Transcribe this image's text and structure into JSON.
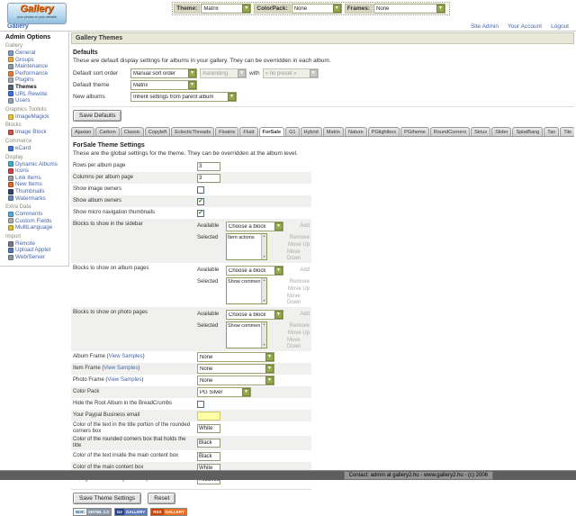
{
  "topbar": {
    "logo": {
      "title": "Gallery",
      "tagline": "your photos on your website"
    },
    "selectors": [
      {
        "label": "Theme:",
        "value": "Matrix"
      },
      {
        "label": "ColorPack:",
        "value": "None"
      },
      {
        "label": "Frames:",
        "value": "None"
      }
    ]
  },
  "nav": {
    "breadcrumb": "Gallery",
    "links": [
      "Site Admin",
      "Your Account",
      "Logout"
    ]
  },
  "sidebar": {
    "title": "Admin Options",
    "sections": [
      {
        "label": "Gallery",
        "items": [
          {
            "icon": "general-icon",
            "label": "General"
          },
          {
            "icon": "groups-icon",
            "label": "Groups"
          },
          {
            "icon": "maintenance-icon",
            "label": "Maintenance"
          },
          {
            "icon": "performance-icon",
            "label": "Performance"
          },
          {
            "icon": "plugins-icon",
            "label": "Plugins"
          },
          {
            "icon": "themes-icon",
            "label": "Themes",
            "active": true
          },
          {
            "icon": "url-rewrite-icon",
            "label": "URL Rewrite"
          },
          {
            "icon": "users-icon",
            "label": "Users"
          }
        ]
      },
      {
        "label": "Graphics Toolkits",
        "items": [
          {
            "icon": "imagemagick-icon",
            "label": "ImageMagick"
          }
        ]
      },
      {
        "label": "Blocks",
        "items": [
          {
            "icon": "image-block-icon",
            "label": "Image Block"
          }
        ]
      },
      {
        "label": "Commerce",
        "items": [
          {
            "icon": "ecard-icon",
            "label": "eCard"
          }
        ]
      },
      {
        "label": "Display",
        "items": [
          {
            "icon": "dynamic-albums-icon",
            "label": "Dynamic Albums"
          },
          {
            "icon": "icons-icon",
            "label": "Icons"
          },
          {
            "icon": "link-items-icon",
            "label": "Link Items"
          },
          {
            "icon": "new-items-icon",
            "label": "New Items"
          },
          {
            "icon": "thumbnails-icon",
            "label": "Thumbnails"
          },
          {
            "icon": "watermarks-icon",
            "label": "Watermarks"
          }
        ]
      },
      {
        "label": "Extra Data",
        "items": [
          {
            "icon": "comments-icon",
            "label": "Comments"
          },
          {
            "icon": "custom-fields-icon",
            "label": "Custom Fields"
          },
          {
            "icon": "multilanguage-icon",
            "label": "MultiLanguage"
          }
        ]
      },
      {
        "label": "Import",
        "items": [
          {
            "icon": "remote-icon",
            "label": "Remote"
          },
          {
            "icon": "upload-applet-icon",
            "label": "Upload Applet"
          },
          {
            "icon": "web-server-icon",
            "label": "Web/Server"
          }
        ]
      }
    ]
  },
  "main": {
    "page_title": "Gallery Themes",
    "defaults": {
      "title": "Defaults",
      "description": "These are default display settings for albums in your gallery. They can be overridden in each album.",
      "sort_row": {
        "label": "Default sort order",
        "select1": "Manual sort order",
        "select2": "Ascending",
        "conj": "with",
        "select3": "« no preset »"
      },
      "theme_row": {
        "label": "Default theme",
        "value": "Matrix"
      },
      "albums_row": {
        "label": "New albums",
        "value": "Inherit settings from parent album"
      },
      "save_button": "Save Defaults"
    },
    "tabs": {
      "active_index": 7,
      "items": [
        "Ajaxian",
        "Carbon",
        "Classic",
        "Copyleft",
        "EclecticThreads",
        "Floatrix",
        "Fluid",
        "ForSale",
        "G1",
        "Hybrid",
        "Matrix",
        "Nature",
        "PGlightbox",
        "PGtheme",
        "RoundCorners",
        "Siriux",
        "Slider",
        "SplatBang",
        "Tan",
        "Tile",
        "WordpressEmbedded"
      ]
    },
    "theme_settings": {
      "title": "ForSale Theme Settings",
      "description": "These are the global settings for the theme. They can be overridden at the album level.",
      "blocks_widget": {
        "available_label": "Available",
        "selected_label": "Selected",
        "choose_label": "Choose a block",
        "add_label": "Add",
        "actions": [
          "Remove",
          "Move Up",
          "Move Down"
        ]
      },
      "rows": [
        {
          "label": "Rows per album page",
          "type": "text",
          "value": "3"
        },
        {
          "label": "Columns per album page",
          "type": "text",
          "value": "3"
        },
        {
          "label": "Show image owners",
          "type": "checkbox",
          "checked": false
        },
        {
          "label": "Show album owners",
          "type": "checkbox",
          "checked": true
        },
        {
          "label": "Show micro navigation thumbnails",
          "type": "checkbox",
          "checked": true
        },
        {
          "label": "Blocks to show in the sidebar",
          "type": "blocks",
          "selected_items": [
            "Item actions"
          ]
        },
        {
          "label": "Blocks to show on album pages",
          "type": "blocks",
          "selected_items": [
            "Show comments"
          ]
        },
        {
          "label": "Blocks to show on photo pages",
          "type": "blocks",
          "selected_items": [
            "Show comments"
          ]
        },
        {
          "label": "Album Frame",
          "link": "View Samples",
          "type": "select",
          "value": "None",
          "wide": true
        },
        {
          "label": "Item Frame",
          "link": "View Samples",
          "type": "select",
          "value": "None",
          "wide": true
        },
        {
          "label": "Photo Frame",
          "link": "View Samples",
          "type": "select",
          "value": "None",
          "wide": true
        },
        {
          "label": "Color Pack",
          "type": "select",
          "value": "PG Silver"
        },
        {
          "label": "Hide the Root Album in the BreadCrumbs",
          "type": "checkbox",
          "checked": false
        },
        {
          "label": "Your Paypal Business email",
          "type": "text",
          "value": "",
          "highlight": true
        },
        {
          "label": "Color of the text in the title portion of the rounded corners box",
          "type": "text",
          "value": "White"
        },
        {
          "label": "Color of the rounded corners box that holds the title",
          "type": "text",
          "value": "Black"
        },
        {
          "label": "Color of the text inside the main content box",
          "type": "text",
          "value": "Black"
        },
        {
          "label": "Color of the main content box",
          "type": "text",
          "value": "White"
        },
        {
          "label": "Background color of your colorpack",
          "type": "text",
          "value": "#ebd095"
        }
      ],
      "save_button": "Save Theme Settings",
      "reset_button": "Reset"
    }
  },
  "footer": {
    "badges": [
      {
        "name": "xhtml-badge",
        "left": "W3C",
        "right": "XHTML 1.0"
      },
      {
        "name": "gallery-badge",
        "left": "G2",
        "right": "GALLERY"
      },
      {
        "name": "rss-badge",
        "left": "RSS",
        "right": "GALLERY"
      }
    ],
    "contact": "Contact: admin at gallery2.hu - www.gallery2.hu - (c) 2006"
  },
  "colors": {
    "accent_green": "#93a84f",
    "row_stripe": "#f0f0ee",
    "header_bg": "#e8e8d8",
    "link": "#4466aa",
    "highlight_input": "#ffffa6",
    "footer_bar": "#5e5e5e"
  }
}
